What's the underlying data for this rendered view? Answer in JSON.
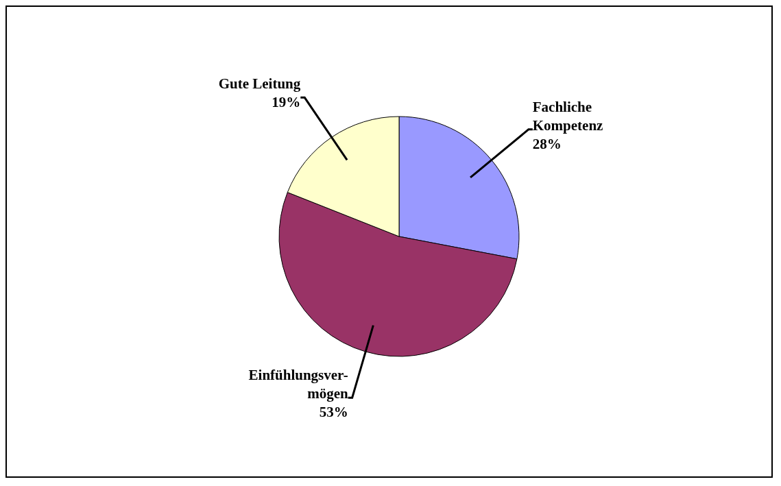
{
  "chart_data": {
    "type": "pie",
    "categories": [
      "Fachliche Kompetenz",
      "Einfühlungsver-mögen",
      "Gute Leitung"
    ],
    "values": [
      28,
      53,
      19
    ],
    "value_labels": [
      "28%",
      "53%",
      "19%"
    ],
    "colors": [
      "#9999ff",
      "#993366",
      "#ffffcc"
    ],
    "legend": false
  }
}
